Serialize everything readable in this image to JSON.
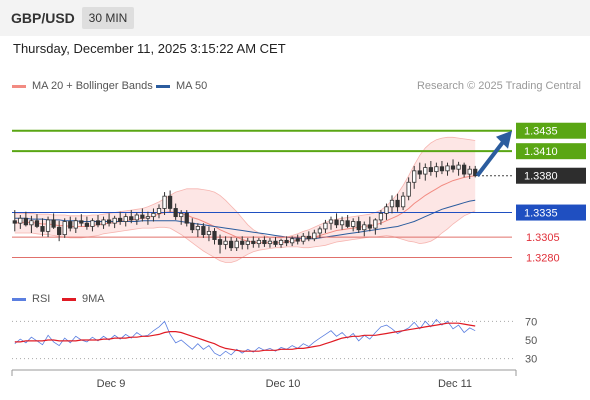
{
  "header": {
    "symbol": "GBP/USD",
    "timeframe": "30 MIN"
  },
  "datetime": "Thursday, December 11, 2025 3:15:22 AM CET",
  "legend": {
    "ma20_label": "MA 20 + Bollinger Bands",
    "ma20_color": "#f28b82",
    "ma50_label": "MA 50",
    "ma50_color": "#2b5c9e",
    "credit": "Research © 2025 Trading Central"
  },
  "rsi_legend": {
    "rsi_label": "RSI",
    "rsi_color": "#5b7fe0",
    "ma_label": "9MA",
    "ma_color": "#e01b24"
  },
  "chart_data": [
    {
      "type": "candlestick",
      "title": "GBP/USD 30 MIN",
      "x_labels": [
        "Dec 9",
        "Dec 10",
        "Dec 11"
      ],
      "ylim": [
        1.3255,
        1.3475
      ],
      "candles": [
        [
          1.3325,
          1.3338,
          1.3312,
          1.3322
        ],
        [
          1.3322,
          1.3332,
          1.3315,
          1.3328
        ],
        [
          1.3328,
          1.3336,
          1.3318,
          1.332
        ],
        [
          1.332,
          1.3331,
          1.331,
          1.3325
        ],
        [
          1.3325,
          1.3333,
          1.3316,
          1.3318
        ],
        [
          1.3318,
          1.3328,
          1.3306,
          1.3312
        ],
        [
          1.3312,
          1.333,
          1.3305,
          1.3326
        ],
        [
          1.3326,
          1.3334,
          1.3315,
          1.3317
        ],
        [
          1.3317,
          1.3325,
          1.33,
          1.3308
        ],
        [
          1.3308,
          1.3328,
          1.3304,
          1.3324
        ],
        [
          1.3324,
          1.333,
          1.3312,
          1.3316
        ],
        [
          1.3316,
          1.3329,
          1.331,
          1.3325
        ],
        [
          1.3325,
          1.3333,
          1.3318,
          1.3322
        ],
        [
          1.3322,
          1.333,
          1.3314,
          1.3318
        ],
        [
          1.3318,
          1.3328,
          1.3312,
          1.3325
        ],
        [
          1.3325,
          1.3332,
          1.3317,
          1.332
        ],
        [
          1.332,
          1.333,
          1.3315,
          1.3326
        ],
        [
          1.3326,
          1.3334,
          1.3318,
          1.3322
        ],
        [
          1.3322,
          1.3331,
          1.3316,
          1.3328
        ],
        [
          1.3328,
          1.3336,
          1.332,
          1.3324
        ],
        [
          1.3324,
          1.3334,
          1.3318,
          1.333
        ],
        [
          1.333,
          1.3338,
          1.3322,
          1.3326
        ],
        [
          1.3326,
          1.3335,
          1.332,
          1.3332
        ],
        [
          1.3332,
          1.334,
          1.3324,
          1.3328
        ],
        [
          1.3328,
          1.3336,
          1.332,
          1.333
        ],
        [
          1.333,
          1.334,
          1.3324,
          1.3334
        ],
        [
          1.3334,
          1.3345,
          1.3328,
          1.334
        ],
        [
          1.334,
          1.336,
          1.3332,
          1.3355
        ],
        [
          1.3355,
          1.3362,
          1.3336,
          1.334
        ],
        [
          1.334,
          1.3346,
          1.3326,
          1.333
        ],
        [
          1.333,
          1.3338,
          1.332,
          1.3334
        ],
        [
          1.3334,
          1.3338,
          1.3318,
          1.3322
        ],
        [
          1.3322,
          1.3328,
          1.331,
          1.3314
        ],
        [
          1.3314,
          1.3322,
          1.3305,
          1.3318
        ],
        [
          1.3318,
          1.3322,
          1.3304,
          1.3308
        ],
        [
          1.3308,
          1.3318,
          1.33,
          1.3312
        ],
        [
          1.3312,
          1.3316,
          1.3296,
          1.3302
        ],
        [
          1.3302,
          1.3308,
          1.3285,
          1.3296
        ],
        [
          1.3296,
          1.3306,
          1.329,
          1.33
        ],
        [
          1.33,
          1.3305,
          1.3288,
          1.3292
        ],
        [
          1.3292,
          1.3304,
          1.3288,
          1.33
        ],
        [
          1.33,
          1.3306,
          1.329,
          1.3296
        ],
        [
          1.3296,
          1.3304,
          1.329,
          1.33
        ],
        [
          1.33,
          1.3306,
          1.3292,
          1.3297
        ],
        [
          1.3297,
          1.3304,
          1.3292,
          1.3301
        ],
        [
          1.3301,
          1.3306,
          1.3293,
          1.3297
        ],
        [
          1.3297,
          1.3304,
          1.3292,
          1.33
        ],
        [
          1.33,
          1.3305,
          1.3293,
          1.3296
        ],
        [
          1.3296,
          1.3303,
          1.3292,
          1.3301
        ],
        [
          1.3301,
          1.3306,
          1.3294,
          1.3298
        ],
        [
          1.3298,
          1.3306,
          1.3294,
          1.3303
        ],
        [
          1.3303,
          1.3308,
          1.3296,
          1.33
        ],
        [
          1.33,
          1.331,
          1.3296,
          1.3306
        ],
        [
          1.3306,
          1.3312,
          1.33,
          1.3303
        ],
        [
          1.3303,
          1.3314,
          1.33,
          1.331
        ],
        [
          1.331,
          1.3318,
          1.3304,
          1.3315
        ],
        [
          1.3315,
          1.3326,
          1.331,
          1.3322
        ],
        [
          1.3322,
          1.333,
          1.3314,
          1.3326
        ],
        [
          1.3326,
          1.3334,
          1.3316,
          1.332
        ],
        [
          1.332,
          1.333,
          1.3314,
          1.3325
        ],
        [
          1.3325,
          1.3332,
          1.3316,
          1.3318
        ],
        [
          1.3318,
          1.3328,
          1.3312,
          1.3324
        ],
        [
          1.3324,
          1.333,
          1.331,
          1.3314
        ],
        [
          1.3314,
          1.3324,
          1.3306,
          1.332
        ],
        [
          1.332,
          1.333,
          1.3312,
          1.3316
        ],
        [
          1.3316,
          1.3328,
          1.3308,
          1.3326
        ],
        [
          1.3326,
          1.3338,
          1.332,
          1.3334
        ],
        [
          1.3334,
          1.3346,
          1.3326,
          1.3342
        ],
        [
          1.3342,
          1.3356,
          1.3334,
          1.335
        ],
        [
          1.335,
          1.3358,
          1.3336,
          1.3342
        ],
        [
          1.3342,
          1.336,
          1.3338,
          1.3355
        ],
        [
          1.3355,
          1.3378,
          1.335,
          1.3372
        ],
        [
          1.3372,
          1.3392,
          1.3364,
          1.3386
        ],
        [
          1.3386,
          1.3396,
          1.3376,
          1.3382
        ],
        [
          1.3382,
          1.3395,
          1.3374,
          1.339
        ],
        [
          1.339,
          1.3398,
          1.338,
          1.3385
        ],
        [
          1.3385,
          1.3396,
          1.3378,
          1.3391
        ],
        [
          1.3391,
          1.3398,
          1.3382,
          1.3386
        ],
        [
          1.3386,
          1.3396,
          1.338,
          1.3392
        ],
        [
          1.3392,
          1.34,
          1.3384,
          1.3388
        ],
        [
          1.3388,
          1.3397,
          1.338,
          1.3393
        ],
        [
          1.3393,
          1.3396,
          1.3378,
          1.3382
        ],
        [
          1.3382,
          1.3392,
          1.3376,
          1.3388
        ],
        [
          1.3388,
          1.3392,
          1.3378,
          1.338
        ]
      ],
      "ma20": [
        1.3322,
        1.3323,
        1.3323,
        1.3323,
        1.3322,
        1.3321,
        1.3321,
        1.332,
        1.3319,
        1.3319,
        1.3318,
        1.3318,
        1.3318,
        1.3318,
        1.3319,
        1.332,
        1.3321,
        1.3322,
        1.3323,
        1.3324,
        1.3325,
        1.3326,
        1.3327,
        1.3328,
        1.3329,
        1.3331,
        1.3333,
        1.3335,
        1.3336,
        1.3335,
        1.3334,
        1.3332,
        1.3329,
        1.3327,
        1.3324,
        1.3321,
        1.3318,
        1.3314,
        1.3311,
        1.3308,
        1.3305,
        1.3302,
        1.33,
        1.3299,
        1.3298,
        1.3298,
        1.3298,
        1.3298,
        1.3298,
        1.3299,
        1.33,
        1.3301,
        1.3302,
        1.3303,
        1.3305,
        1.3307,
        1.3309,
        1.3311,
        1.3313,
        1.3314,
        1.3315,
        1.3316,
        1.3317,
        1.3318,
        1.3319,
        1.332,
        1.3322,
        1.3325,
        1.3328,
        1.3331,
        1.3335,
        1.334,
        1.3346,
        1.3351,
        1.3356,
        1.336,
        1.3364,
        1.3368,
        1.3371,
        1.3374,
        1.3376,
        1.3378,
        1.3379,
        1.338
      ],
      "bb_upper": [
        1.3334,
        1.3334,
        1.3334,
        1.3334,
        1.3333,
        1.3333,
        1.3333,
        1.3332,
        1.3332,
        1.3332,
        1.3331,
        1.3331,
        1.3331,
        1.3331,
        1.3332,
        1.3332,
        1.3333,
        1.3334,
        1.3335,
        1.3336,
        1.3337,
        1.3338,
        1.3339,
        1.334,
        1.3342,
        1.3345,
        1.3348,
        1.3352,
        1.3356,
        1.336,
        1.3362,
        1.3364,
        1.3364,
        1.3364,
        1.3363,
        1.3362,
        1.336,
        1.3356,
        1.335,
        1.3343,
        1.3336,
        1.3328,
        1.332,
        1.3314,
        1.331,
        1.3307,
        1.3305,
        1.3304,
        1.3304,
        1.3305,
        1.3307,
        1.3309,
        1.3312,
        1.3314,
        1.3317,
        1.332,
        1.3323,
        1.3325,
        1.3327,
        1.3328,
        1.3329,
        1.333,
        1.3331,
        1.3332,
        1.3333,
        1.3335,
        1.3338,
        1.3343,
        1.335,
        1.3358,
        1.3368,
        1.338,
        1.3393,
        1.3405,
        1.3414,
        1.342,
        1.3424,
        1.3426,
        1.3427,
        1.3427,
        1.3426,
        1.3425,
        1.3424,
        1.3423
      ],
      "bb_lower": [
        1.331,
        1.331,
        1.331,
        1.331,
        1.3309,
        1.3308,
        1.3308,
        1.3307,
        1.3306,
        1.3305,
        1.3304,
        1.3304,
        1.3304,
        1.3305,
        1.3306,
        1.3307,
        1.3309,
        1.331,
        1.3311,
        1.3312,
        1.3313,
        1.3314,
        1.3315,
        1.3316,
        1.3316,
        1.3316,
        1.3317,
        1.3317,
        1.3316,
        1.3312,
        1.3308,
        1.3303,
        1.3298,
        1.3293,
        1.3288,
        1.3284,
        1.328,
        1.3276,
        1.3274,
        1.3274,
        1.3276,
        1.328,
        1.3284,
        1.3287,
        1.3289,
        1.329,
        1.3291,
        1.3292,
        1.3292,
        1.3293,
        1.3293,
        1.3293,
        1.3292,
        1.3292,
        1.3293,
        1.3294,
        1.3295,
        1.3297,
        1.3299,
        1.33,
        1.3301,
        1.3302,
        1.3303,
        1.3304,
        1.3305,
        1.3305,
        1.3306,
        1.3307,
        1.3306,
        1.3304,
        1.3302,
        1.33,
        1.3299,
        1.3297,
        1.3298,
        1.33,
        1.3304,
        1.331,
        1.3315,
        1.3321,
        1.3326,
        1.3331,
        1.3334,
        1.3337
      ],
      "ma50": [
        1.3328,
        1.3328,
        1.3328,
        1.3327,
        1.3327,
        1.3327,
        1.3326,
        1.3326,
        1.3326,
        1.3325,
        1.3325,
        1.3325,
        1.3324,
        1.3324,
        1.3324,
        1.3324,
        1.3324,
        1.3324,
        1.3324,
        1.3324,
        1.3324,
        1.3324,
        1.3324,
        1.3325,
        1.3325,
        1.3325,
        1.3325,
        1.3325,
        1.3325,
        1.3325,
        1.3324,
        1.3323,
        1.3322,
        1.3321,
        1.332,
        1.3319,
        1.3318,
        1.3317,
        1.3316,
        1.3315,
        1.3314,
        1.3313,
        1.3312,
        1.3311,
        1.331,
        1.3309,
        1.3308,
        1.3307,
        1.3306,
        1.3305,
        1.3304,
        1.3304,
        1.3303,
        1.3303,
        1.3303,
        1.3304,
        1.3305,
        1.3306,
        1.3307,
        1.3308,
        1.3309,
        1.331,
        1.3311,
        1.3312,
        1.3313,
        1.3314,
        1.3315,
        1.3316,
        1.3317,
        1.3318,
        1.332,
        1.3322,
        1.3324,
        1.3327,
        1.333,
        1.3333,
        1.3336,
        1.3339,
        1.3341,
        1.3343,
        1.3345,
        1.3347,
        1.3349,
        1.335
      ],
      "levels": [
        {
          "value": 1.3435,
          "label": "1.3435",
          "kind": "resistance"
        },
        {
          "value": 1.341,
          "label": "1.3410",
          "kind": "resistance"
        },
        {
          "value": 1.338,
          "label": "1.3380",
          "kind": "last"
        },
        {
          "value": 1.3335,
          "label": "1.3335",
          "kind": "pivot"
        },
        {
          "value": 1.3305,
          "label": "1.3305",
          "kind": "support"
        },
        {
          "value": 1.328,
          "label": "1.3280",
          "kind": "support"
        }
      ],
      "colors": {
        "resistance": "#5aa614",
        "pivot": "#1f4fc1",
        "support": "#e0706b",
        "last": "#2d2d2d",
        "candle": "#333333",
        "bb_fill": "#fde2e0",
        "arrow": "#2b5c9e"
      },
      "arrow_target": 1.3435
    },
    {
      "type": "line",
      "title": "RSI",
      "ylim": [
        20,
        80
      ],
      "y_ticks": [
        70,
        50,
        30
      ],
      "series": [
        {
          "name": "RSI",
          "values": [
            46,
            51,
            47,
            53,
            49,
            45,
            55,
            48,
            44,
            52,
            47,
            54,
            50,
            48,
            53,
            49,
            54,
            50,
            55,
            51,
            56,
            52,
            58,
            54,
            55,
            60,
            64,
            70,
            56,
            47,
            50,
            45,
            40,
            46,
            40,
            44,
            36,
            33,
            38,
            34,
            40,
            36,
            40,
            37,
            42,
            39,
            41,
            38,
            42,
            40,
            44,
            41,
            46,
            43,
            48,
            52,
            56,
            60,
            54,
            58,
            52,
            57,
            49,
            55,
            51,
            58,
            64,
            66,
            62,
            57,
            60,
            63,
            69,
            62,
            70,
            64,
            72,
            66,
            70,
            62,
            66,
            58,
            63,
            60
          ]
        },
        {
          "name": "9MA",
          "values": [
            48,
            48,
            49,
            49,
            49,
            49,
            50,
            50,
            49,
            49,
            49,
            49,
            50,
            50,
            50,
            50,
            51,
            51,
            52,
            52,
            52,
            53,
            53,
            54,
            54,
            55,
            56,
            58,
            59,
            59,
            58,
            56,
            54,
            52,
            50,
            48,
            46,
            43,
            41,
            40,
            39,
            38,
            38,
            38,
            38,
            39,
            39,
            39,
            40,
            40,
            40,
            41,
            41,
            42,
            43,
            44,
            46,
            48,
            50,
            52,
            53,
            54,
            54,
            55,
            55,
            55,
            56,
            57,
            58,
            59,
            60,
            61,
            62,
            63,
            64,
            65,
            66,
            67,
            68,
            68,
            68,
            67,
            66,
            65
          ]
        }
      ]
    }
  ]
}
